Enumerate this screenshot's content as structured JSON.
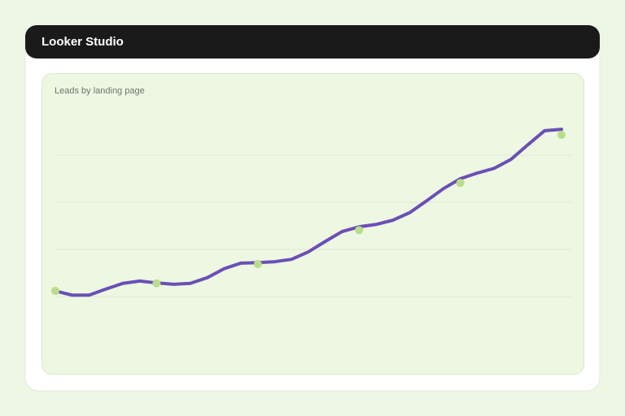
{
  "header": {
    "title": "Looker Studio"
  },
  "chart_data": {
    "type": "line",
    "title": "Leads by landing page",
    "categories": [
      null,
      null,
      null,
      null,
      null,
      null,
      null,
      null,
      null,
      null,
      null,
      null,
      null,
      null,
      null,
      null,
      null,
      null,
      null,
      null,
      null,
      null,
      null,
      null,
      null,
      null,
      null,
      null,
      null,
      null,
      null
    ],
    "series": [
      {
        "color": "#6b4fb5",
        "values": [
          1.12,
          1.03,
          1.03,
          1.16,
          1.28,
          1.33,
          1.29,
          1.26,
          1.28,
          1.4,
          1.59,
          1.71,
          1.72,
          1.74,
          1.79,
          1.95,
          2.17,
          2.38,
          2.48,
          2.53,
          2.62,
          2.78,
          3.03,
          3.29,
          3.5,
          3.62,
          3.72,
          3.91,
          4.22,
          4.52,
          4.55
        ]
      },
      {
        "color": "#b9dd8a",
        "marker": "dot",
        "values": [
          1.12,
          null,
          null,
          null,
          null,
          null,
          1.28,
          null,
          null,
          null,
          null,
          null,
          1.69,
          null,
          null,
          null,
          null,
          null,
          2.41,
          null,
          null,
          null,
          null,
          null,
          3.41,
          null,
          null,
          null,
          null,
          null,
          4.43
        ]
      }
    ],
    "ylim": [
      0,
      5
    ],
    "yticks": [
      1,
      2,
      3,
      4
    ],
    "grid": true
  }
}
